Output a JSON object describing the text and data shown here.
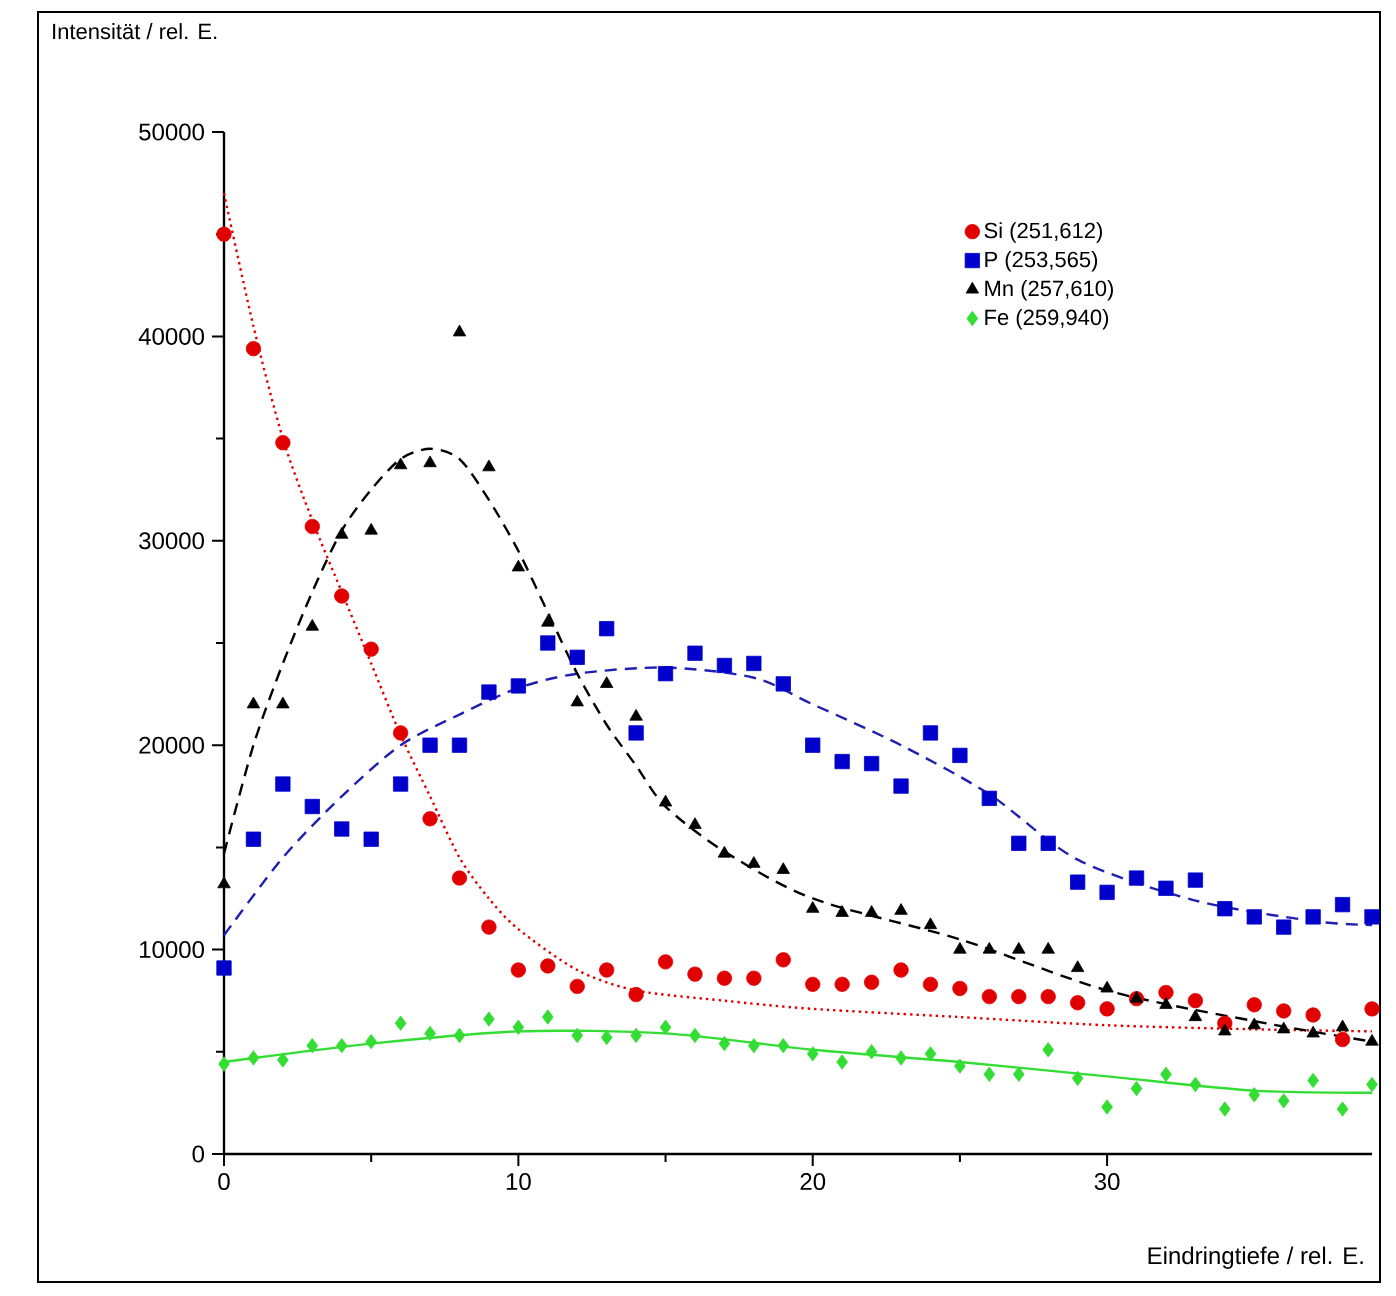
{
  "chart_data": {
    "type": "scatter",
    "xlabel": "Eindringtiefe / rel. E.",
    "ylabel": "Intensität / rel. E.",
    "x": [
      0,
      1,
      2,
      3,
      4,
      5,
      6,
      7,
      8,
      9,
      10,
      11,
      12,
      13,
      14,
      15,
      16,
      17,
      18,
      19,
      20,
      21,
      22,
      23,
      24,
      25,
      26,
      27,
      28,
      29,
      30,
      31,
      32,
      33,
      34,
      35,
      36,
      37,
      38,
      39
    ],
    "xlim": [
      0,
      39
    ],
    "xticks": [
      0,
      10,
      20,
      30
    ],
    "ylim": [
      0,
      50000
    ],
    "yticks": [
      0,
      10000,
      20000,
      30000,
      40000,
      50000
    ],
    "legend": "top right",
    "grid": false,
    "series": [
      {
        "name": "Si  (251,612)",
        "color": "#e00000",
        "marker": "circle",
        "values": [
          45000,
          39400,
          34800,
          30700,
          27300,
          24700,
          20600,
          16400,
          13500,
          11100,
          9000,
          9200,
          8200,
          9000,
          7800,
          9400,
          8800,
          8600,
          8600,
          9500,
          8300,
          8300,
          8400,
          9000,
          8300,
          8100,
          7700,
          7700,
          7700,
          7400,
          7100,
          7600,
          7900,
          7500,
          6400,
          7300,
          7000,
          6800,
          5600,
          7100
        ]
      },
      {
        "name": "P  (253,565)",
        "color": "#0000cc",
        "marker": "square",
        "values": [
          9100,
          15400,
          18100,
          17000,
          15900,
          15400,
          18100,
          20000,
          20000,
          22600,
          22900,
          25000,
          24300,
          25700,
          20600,
          23500,
          24500,
          23900,
          24000,
          23000,
          20000,
          19200,
          19100,
          18000,
          20600,
          19500,
          17400,
          15200,
          15200,
          13300,
          12800,
          13500,
          13000,
          13400,
          12000,
          11600,
          11100,
          11600,
          12200,
          11600
        ]
      },
      {
        "name": "Mn (257,610)",
        "color": "#000000",
        "marker": "triangle",
        "values": [
          13200,
          22000,
          22000,
          25800,
          30300,
          30500,
          33700,
          33800,
          40200,
          33600,
          28700,
          26000,
          22100,
          23000,
          21400,
          17200,
          16100,
          14700,
          14200,
          13900,
          12000,
          11800,
          11800,
          11900,
          11200,
          10000,
          10000,
          10000,
          10000,
          9100,
          8100,
          7600,
          7300,
          6700,
          6000,
          6300,
          6100,
          5900,
          6200,
          5500
        ]
      },
      {
        "name": "Fe (259,940)",
        "color": "#33dd33",
        "marker": "diamond",
        "values": [
          4400,
          4700,
          4600,
          5300,
          5300,
          5500,
          6400,
          5900,
          5800,
          6600,
          6200,
          6700,
          5800,
          5700,
          5800,
          6200,
          5800,
          5400,
          5300,
          5300,
          4900,
          4500,
          5000,
          4700,
          4900,
          4300,
          3900,
          3900,
          5100,
          3700,
          2300,
          3200,
          3900,
          3400,
          2200,
          2900,
          2600,
          3600,
          2200,
          3400
        ]
      },
      {
        "type": "line",
        "color": "#e00000",
        "line_style": "dotted",
        "x": [
          0,
          1,
          2,
          3,
          4,
          5,
          6,
          7,
          8,
          9,
          10,
          12,
          14,
          17,
          20,
          25,
          30,
          35,
          39
        ],
        "values": [
          47000,
          40500,
          35000,
          31000,
          27500,
          24000,
          20500,
          17500,
          14500,
          12500,
          11000,
          9000,
          8000,
          7500,
          7100,
          6700,
          6300,
          6100,
          6000
        ]
      },
      {
        "type": "line",
        "color": "#2020b0",
        "line_style": "dashed",
        "x": [
          0,
          2,
          4,
          6,
          8,
          10,
          12,
          15,
          18,
          20,
          23,
          26,
          29,
          33,
          37,
          39
        ],
        "values": [
          10700,
          14500,
          17500,
          20000,
          21500,
          22800,
          23500,
          23800,
          23300,
          22000,
          20000,
          17600,
          14400,
          12400,
          11400,
          11200
        ]
      },
      {
        "type": "line",
        "color": "#000000",
        "line_style": "dashed",
        "x": [
          0,
          1,
          2,
          3,
          4,
          5,
          6,
          7,
          8,
          9,
          10,
          11,
          12,
          13,
          14,
          15,
          17,
          20,
          25,
          30,
          35,
          39
        ],
        "values": [
          14700,
          20000,
          24000,
          27500,
          30500,
          32500,
          34000,
          34500,
          34000,
          32000,
          29500,
          26500,
          23500,
          21000,
          19000,
          17000,
          14800,
          12500,
          10500,
          8000,
          6500,
          5500
        ]
      },
      {
        "type": "line",
        "color": "#33dd33",
        "line_style": "solid",
        "x": [
          0,
          5,
          10,
          15,
          20,
          25,
          30,
          35,
          39
        ],
        "values": [
          4500,
          5400,
          6000,
          5900,
          5100,
          4500,
          3800,
          3100,
          3000
        ]
      }
    ]
  }
}
